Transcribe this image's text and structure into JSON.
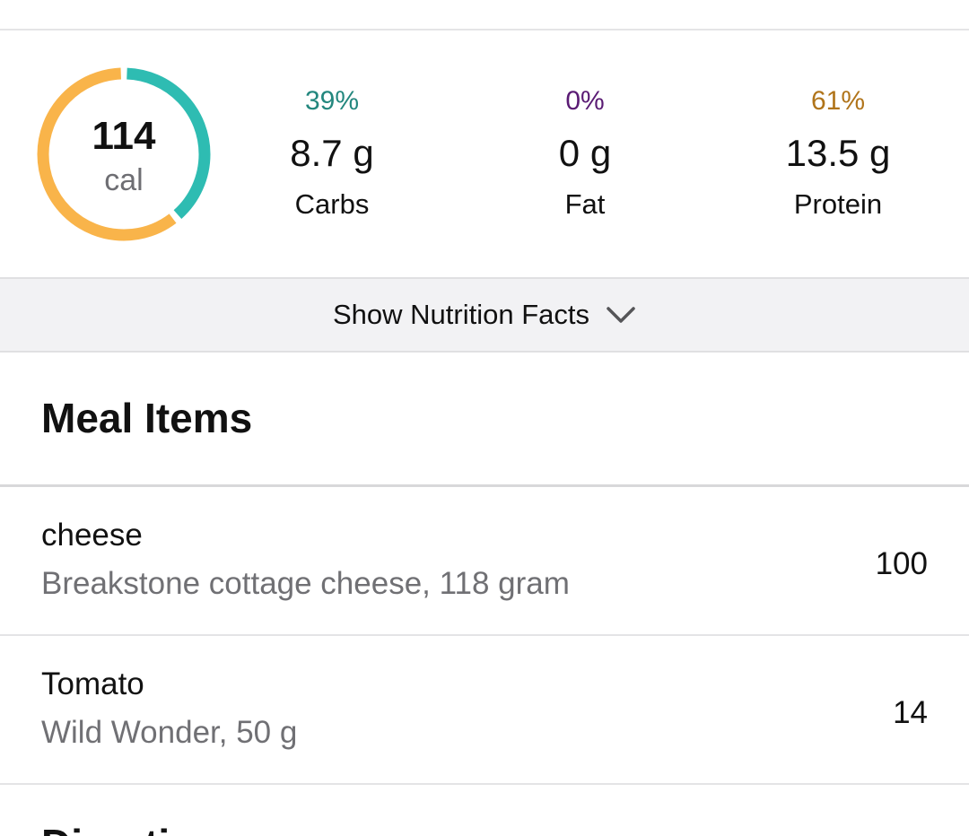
{
  "summary": {
    "calories": "114",
    "calories_unit": "cal",
    "ring_fractions": {
      "carbs": 0.39,
      "fat": 0.0,
      "protein": 0.61
    },
    "colors": {
      "carbs": "#2ebcb2",
      "fat": "#7a1f8c",
      "protein": "#f9b44a"
    },
    "macros": {
      "carbs": {
        "percent": "39%",
        "grams": "8.7 g",
        "label": "Carbs",
        "pct_color": "#23877e"
      },
      "fat": {
        "percent": "0%",
        "grams": "0 g",
        "label": "Fat",
        "pct_color": "#5a1b74"
      },
      "protein": {
        "percent": "61%",
        "grams": "13.5 g",
        "label": "Protein",
        "pct_color": "#b0741a"
      }
    }
  },
  "nutrition_toggle": {
    "label": "Show Nutrition Facts",
    "icon": "chevron-down-icon"
  },
  "meal_items": {
    "title": "Meal Items",
    "items": [
      {
        "name": "cheese",
        "description": "Breakstone cottage cheese, 118 gram",
        "calories": "100"
      },
      {
        "name": "Tomato",
        "description": "Wild Wonder, 50 g",
        "calories": "14"
      }
    ]
  },
  "next_section": {
    "title": "Directions"
  }
}
